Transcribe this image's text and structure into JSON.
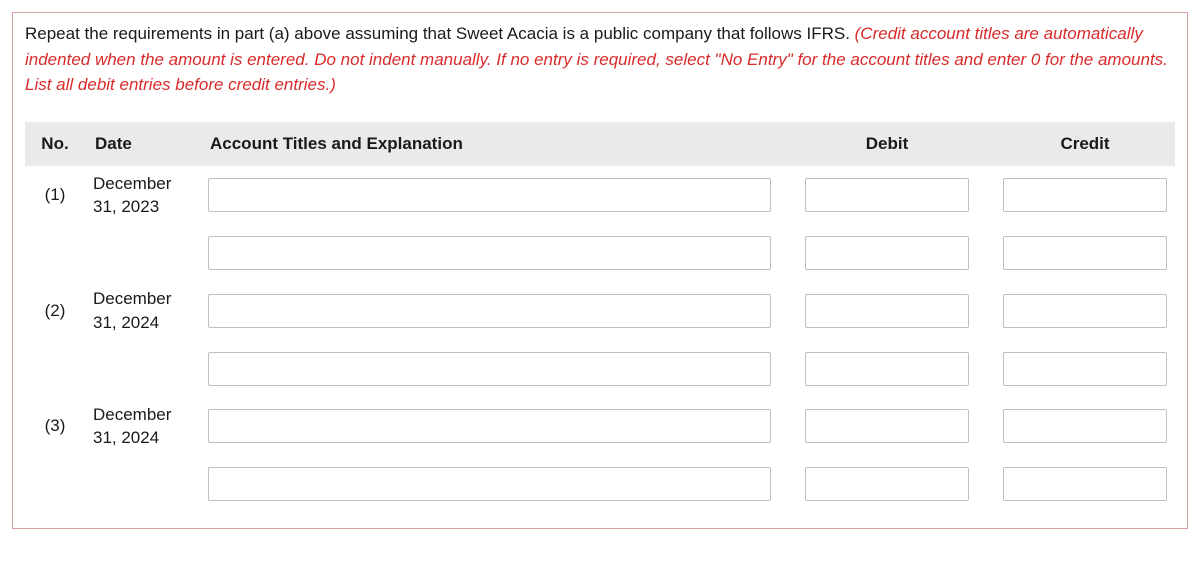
{
  "instructions": {
    "black_text": "Repeat the requirements in part (a) above assuming that Sweet Acacia is a public company that follows IFRS. ",
    "red_text": "(Credit account titles are automatically indented when the amount is entered. Do not indent manually. If no entry is required, select \"No Entry\" for the account titles and enter 0 for the amounts. List all debit entries before credit entries.)"
  },
  "headers": {
    "no": "No.",
    "date": "Date",
    "account": "Account Titles and Explanation",
    "debit": "Debit",
    "credit": "Credit"
  },
  "rows": [
    {
      "no": "(1)",
      "date_line1": "December",
      "date_line2": "31, 2023",
      "account": "",
      "debit": "",
      "credit": ""
    },
    {
      "no": "",
      "date_line1": "",
      "date_line2": "",
      "account": "",
      "debit": "",
      "credit": ""
    },
    {
      "no": "(2)",
      "date_line1": "December",
      "date_line2": "31, 2024",
      "account": "",
      "debit": "",
      "credit": ""
    },
    {
      "no": "",
      "date_line1": "",
      "date_line2": "",
      "account": "",
      "debit": "",
      "credit": ""
    },
    {
      "no": "(3)",
      "date_line1": "December",
      "date_line2": "31, 2024",
      "account": "",
      "debit": "",
      "credit": ""
    },
    {
      "no": "",
      "date_line1": "",
      "date_line2": "",
      "account": "",
      "debit": "",
      "credit": ""
    }
  ]
}
